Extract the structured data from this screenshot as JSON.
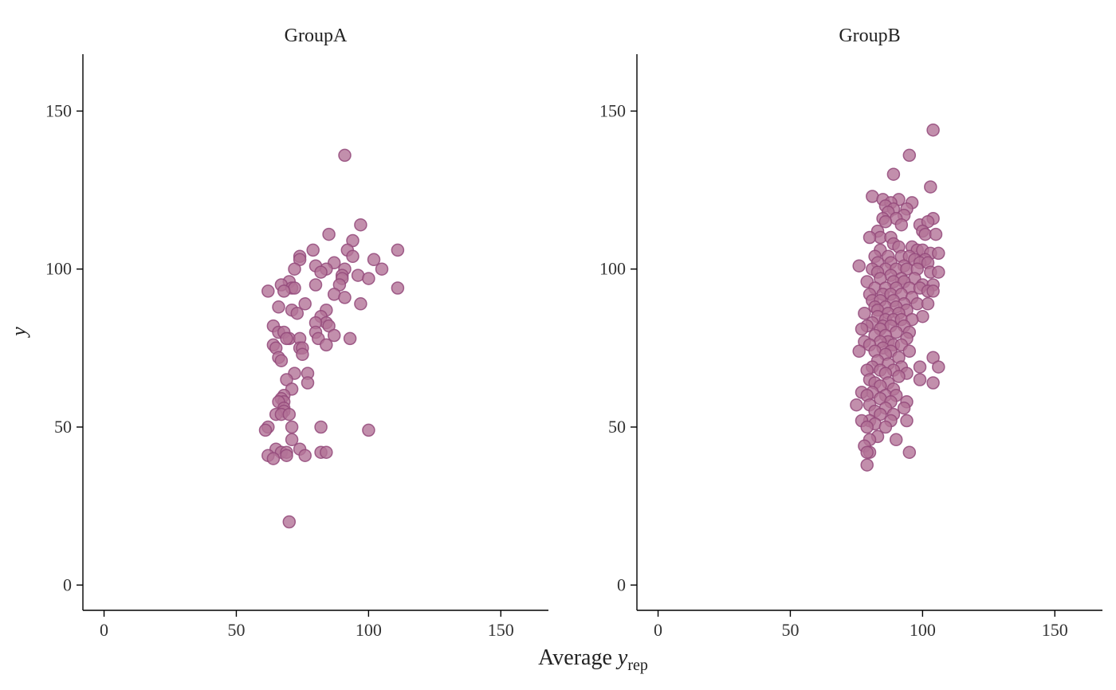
{
  "colors": {
    "point_fill": "#b37397",
    "point_stroke": "#93497a",
    "axis": "#000000"
  },
  "x_axis_label": {
    "main": "Average ",
    "var": "y",
    "sub": "rep"
  },
  "y_axis_label": "y",
  "chart_data": [
    {
      "type": "scatter",
      "title": "GroupA",
      "xlim": [
        -8,
        168
      ],
      "ylim": [
        -8,
        168
      ],
      "xticks": [
        0,
        50,
        100,
        150
      ],
      "yticks": [
        0,
        50,
        100,
        150
      ],
      "xlabel": "Average y_rep",
      "ylabel": "y",
      "grid": false,
      "points": [
        [
          91,
          136
        ],
        [
          97,
          114
        ],
        [
          85,
          111
        ],
        [
          94,
          109
        ],
        [
          111,
          106
        ],
        [
          92,
          106
        ],
        [
          79,
          106
        ],
        [
          74,
          104
        ],
        [
          94,
          104
        ],
        [
          74,
          103
        ],
        [
          102,
          103
        ],
        [
          87,
          102
        ],
        [
          80,
          101
        ],
        [
          72,
          100
        ],
        [
          84,
          100
        ],
        [
          105,
          100
        ],
        [
          91,
          100
        ],
        [
          82,
          99
        ],
        [
          90,
          98
        ],
        [
          96,
          98
        ],
        [
          90,
          97
        ],
        [
          100,
          97
        ],
        [
          70,
          96
        ],
        [
          67,
          95
        ],
        [
          80,
          95
        ],
        [
          89,
          95
        ],
        [
          71,
          94
        ],
        [
          72,
          94
        ],
        [
          111,
          94
        ],
        [
          62,
          93
        ],
        [
          68,
          93
        ],
        [
          87,
          92
        ],
        [
          91,
          91
        ],
        [
          97,
          89
        ],
        [
          76,
          89
        ],
        [
          66,
          88
        ],
        [
          71,
          87
        ],
        [
          84,
          87
        ],
        [
          73,
          86
        ],
        [
          82,
          85
        ],
        [
          84,
          83
        ],
        [
          80,
          83
        ],
        [
          85,
          82
        ],
        [
          64,
          82
        ],
        [
          66,
          80
        ],
        [
          68,
          80
        ],
        [
          80,
          80
        ],
        [
          87,
          79
        ],
        [
          70,
          78
        ],
        [
          81,
          78
        ],
        [
          69,
          78
        ],
        [
          74,
          78
        ],
        [
          93,
          78
        ],
        [
          64,
          76
        ],
        [
          84,
          76
        ],
        [
          65,
          75
        ],
        [
          74,
          75
        ],
        [
          75,
          75
        ],
        [
          75,
          73
        ],
        [
          66,
          72
        ],
        [
          67,
          71
        ],
        [
          77,
          67
        ],
        [
          72,
          67
        ],
        [
          69,
          65
        ],
        [
          77,
          64
        ],
        [
          71,
          62
        ],
        [
          68,
          60
        ],
        [
          67,
          59
        ],
        [
          68,
          58
        ],
        [
          66,
          58
        ],
        [
          68,
          56
        ],
        [
          68,
          55
        ],
        [
          65,
          54
        ],
        [
          67,
          54
        ],
        [
          70,
          54
        ],
        [
          62,
          50
        ],
        [
          71,
          50
        ],
        [
          82,
          50
        ],
        [
          61,
          49
        ],
        [
          100,
          49
        ],
        [
          71,
          46
        ],
        [
          65,
          43
        ],
        [
          74,
          43
        ],
        [
          67,
          42
        ],
        [
          69,
          42
        ],
        [
          82,
          42
        ],
        [
          84,
          42
        ],
        [
          62,
          41
        ],
        [
          69,
          41
        ],
        [
          76,
          41
        ],
        [
          64,
          40
        ],
        [
          70,
          20
        ]
      ]
    },
    {
      "type": "scatter",
      "title": "GroupB",
      "xlim": [
        -8,
        168
      ],
      "ylim": [
        -8,
        168
      ],
      "xticks": [
        0,
        50,
        100,
        150
      ],
      "yticks": [
        0,
        50,
        100,
        150
      ],
      "xlabel": "Average y_rep",
      "ylabel": "y",
      "grid": false,
      "points": [
        [
          104,
          144
        ],
        [
          95,
          136
        ],
        [
          89,
          130
        ],
        [
          103,
          126
        ],
        [
          81,
          123
        ],
        [
          85,
          122
        ],
        [
          91,
          122
        ],
        [
          88,
          121
        ],
        [
          96,
          121
        ],
        [
          86,
          120
        ],
        [
          89,
          119
        ],
        [
          94,
          119
        ],
        [
          87,
          118
        ],
        [
          93,
          117
        ],
        [
          85,
          116
        ],
        [
          90,
          116
        ],
        [
          104,
          116
        ],
        [
          86,
          115
        ],
        [
          92,
          114
        ],
        [
          99,
          114
        ],
        [
          102,
          115
        ],
        [
          100,
          112
        ],
        [
          83,
          112
        ],
        [
          84,
          110
        ],
        [
          80,
          110
        ],
        [
          88,
          110
        ],
        [
          101,
          111
        ],
        [
          105,
          111
        ],
        [
          89,
          108
        ],
        [
          91,
          107
        ],
        [
          96,
          107
        ],
        [
          84,
          106
        ],
        [
          98,
          106
        ],
        [
          100,
          106
        ],
        [
          103,
          105
        ],
        [
          106,
          105
        ],
        [
          82,
          104
        ],
        [
          87,
          104
        ],
        [
          92,
          104
        ],
        [
          95,
          104
        ],
        [
          97,
          103
        ],
        [
          101,
          103
        ],
        [
          83,
          102
        ],
        [
          88,
          102
        ],
        [
          93,
          101
        ],
        [
          99,
          102
        ],
        [
          102,
          102
        ],
        [
          76,
          101
        ],
        [
          81,
          100
        ],
        [
          86,
          100
        ],
        [
          90,
          100
        ],
        [
          94,
          100
        ],
        [
          98,
          100
        ],
        [
          103,
          99
        ],
        [
          106,
          99
        ],
        [
          83,
          99
        ],
        [
          88,
          98
        ],
        [
          92,
          97
        ],
        [
          97,
          97
        ],
        [
          84,
          97
        ],
        [
          79,
          96
        ],
        [
          89,
          96
        ],
        [
          93,
          96
        ],
        [
          100,
          95
        ],
        [
          104,
          95
        ],
        [
          82,
          94
        ],
        [
          86,
          94
        ],
        [
          90,
          94
        ],
        [
          95,
          94
        ],
        [
          99,
          94
        ],
        [
          102,
          93
        ],
        [
          104,
          93
        ],
        [
          80,
          92
        ],
        [
          85,
          92
        ],
        [
          88,
          92
        ],
        [
          92,
          92
        ],
        [
          96,
          91
        ],
        [
          81,
          90
        ],
        [
          84,
          90
        ],
        [
          89,
          90
        ],
        [
          93,
          89
        ],
        [
          98,
          89
        ],
        [
          102,
          89
        ],
        [
          82,
          88
        ],
        [
          86,
          88
        ],
        [
          90,
          88
        ],
        [
          94,
          87
        ],
        [
          83,
          87
        ],
        [
          87,
          86
        ],
        [
          91,
          86
        ],
        [
          78,
          86
        ],
        [
          100,
          85
        ],
        [
          83,
          85
        ],
        [
          86,
          84
        ],
        [
          89,
          84
        ],
        [
          92,
          84
        ],
        [
          96,
          84
        ],
        [
          81,
          83
        ],
        [
          85,
          82
        ],
        [
          88,
          82
        ],
        [
          93,
          82
        ],
        [
          79,
          82
        ],
        [
          84,
          81
        ],
        [
          77,
          81
        ],
        [
          90,
          80
        ],
        [
          95,
          80
        ],
        [
          82,
          79
        ],
        [
          86,
          79
        ],
        [
          87,
          77
        ],
        [
          94,
          78
        ],
        [
          78,
          77
        ],
        [
          84,
          77
        ],
        [
          89,
          76
        ],
        [
          92,
          76
        ],
        [
          80,
          76
        ],
        [
          85,
          75
        ],
        [
          82,
          74
        ],
        [
          76,
          74
        ],
        [
          88,
          74
        ],
        [
          95,
          74
        ],
        [
          86,
          73
        ],
        [
          91,
          72
        ],
        [
          104,
          72
        ],
        [
          83,
          71
        ],
        [
          87,
          70
        ],
        [
          81,
          69
        ],
        [
          92,
          69
        ],
        [
          99,
          69
        ],
        [
          106,
          69
        ],
        [
          79,
          68
        ],
        [
          84,
          68
        ],
        [
          89,
          68
        ],
        [
          94,
          67
        ],
        [
          86,
          67
        ],
        [
          91,
          66
        ],
        [
          80,
          65
        ],
        [
          99,
          65
        ],
        [
          82,
          64
        ],
        [
          87,
          64
        ],
        [
          104,
          64
        ],
        [
          84,
          63
        ],
        [
          89,
          62
        ],
        [
          81,
          61
        ],
        [
          77,
          61
        ],
        [
          86,
          60
        ],
        [
          90,
          60
        ],
        [
          79,
          60
        ],
        [
          84,
          59
        ],
        [
          88,
          58
        ],
        [
          94,
          58
        ],
        [
          80,
          57
        ],
        [
          75,
          57
        ],
        [
          86,
          56
        ],
        [
          93,
          56
        ],
        [
          82,
          55
        ],
        [
          89,
          54
        ],
        [
          84,
          54
        ],
        [
          80,
          52
        ],
        [
          77,
          52
        ],
        [
          88,
          52
        ],
        [
          94,
          52
        ],
        [
          82,
          51
        ],
        [
          86,
          50
        ],
        [
          79,
          50
        ],
        [
          83,
          47
        ],
        [
          80,
          46
        ],
        [
          90,
          46
        ],
        [
          78,
          44
        ],
        [
          80,
          42
        ],
        [
          79,
          42
        ],
        [
          95,
          42
        ],
        [
          79,
          38
        ]
      ]
    }
  ]
}
